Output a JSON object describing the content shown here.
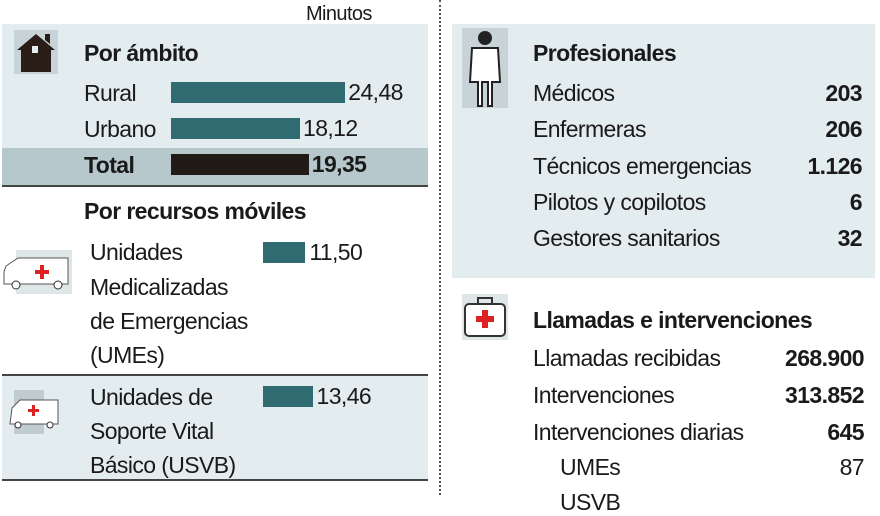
{
  "unit_label": "Minutos",
  "colors": {
    "bar": "#2f6b70",
    "total_bar": "#221a16",
    "panel": "#e3ecee",
    "total_row": "#b6c8cc"
  },
  "chart_data": [
    {
      "type": "bar",
      "orientation": "horizontal",
      "title": "Por ámbito",
      "unit": "Minutos",
      "categories": [
        "Rural",
        "Urbano",
        "Total"
      ],
      "values": [
        24.48,
        18.12,
        19.35
      ],
      "labels": [
        "24,48",
        "18,12",
        "19,35"
      ]
    },
    {
      "type": "bar",
      "orientation": "horizontal",
      "title": "Por recursos móviles",
      "unit": "Minutos",
      "categories": [
        "Unidades Medicalizadas de Emergencias (UMEs)",
        "Unidades de Soporte Vital Básico (USVB)"
      ],
      "values": [
        11.5,
        13.46
      ],
      "labels": [
        "11,50",
        "13,46"
      ]
    }
  ],
  "left": {
    "ambito": {
      "title": "Por ámbito",
      "rows": [
        {
          "label": "Rural"
        },
        {
          "label": "Urbano"
        },
        {
          "label": "Total"
        }
      ]
    },
    "moviles": {
      "title": "Por recursos móviles",
      "umes": [
        "Unidades",
        "Medicalizadas",
        "de Emergencias",
        "(UMEs)"
      ],
      "usvb": [
        "Unidades de",
        "Soporte Vital",
        "Básico (USVB)"
      ]
    }
  },
  "right": {
    "profesionales": {
      "title": "Profesionales",
      "rows": [
        {
          "label": "Médicos",
          "value": "203"
        },
        {
          "label": "Enfermeras",
          "value": "206"
        },
        {
          "label": "Técnicos emergencias",
          "value": "1.126"
        },
        {
          "label": "Pilotos y copilotos",
          "value": "6"
        },
        {
          "label": "Gestores sanitarios",
          "value": "32"
        }
      ]
    },
    "llamadas": {
      "title": "Llamadas e intervenciones",
      "rows": [
        {
          "label": "Llamadas recibidas",
          "value": "268.900"
        },
        {
          "label": "Intervenciones",
          "value": "313.852"
        },
        {
          "label": "Intervenciones diarias",
          "value": "645"
        }
      ],
      "sub": [
        {
          "label": "UMEs",
          "value": "87"
        },
        {
          "label": "USVB"
        }
      ]
    }
  }
}
